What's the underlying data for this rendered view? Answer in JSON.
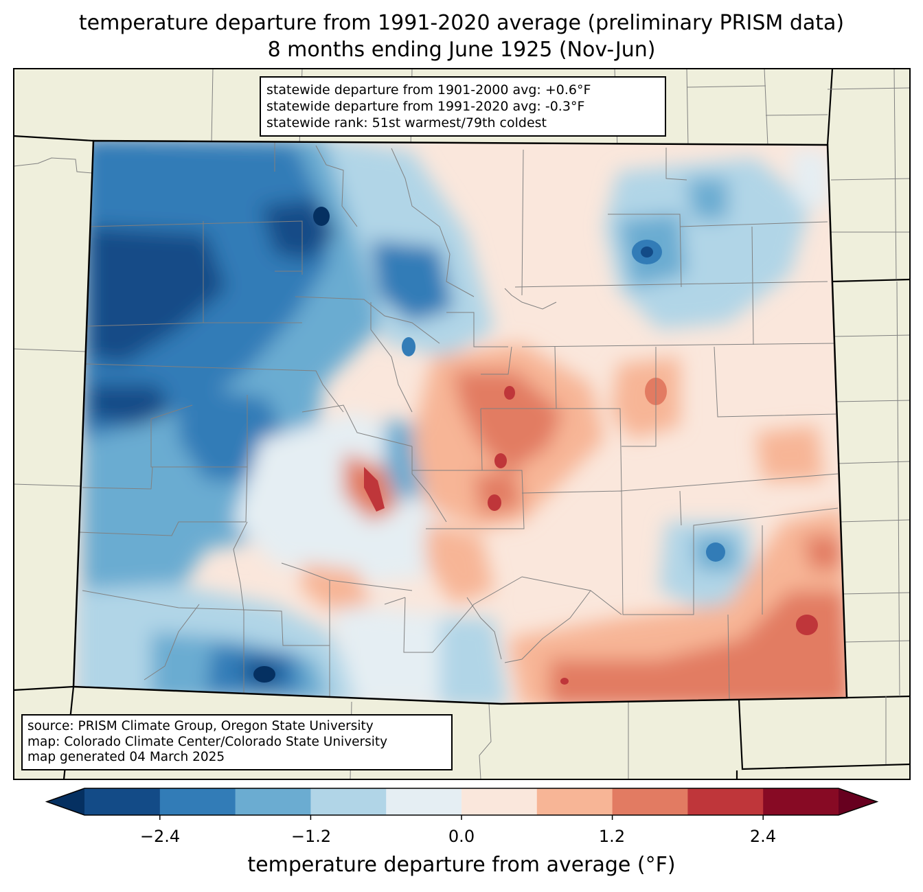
{
  "title": {
    "line1": "temperature departure from 1991-2020 average (preliminary PRISM data)",
    "line2": "8 months ending June 1925 (Nov-Jun)"
  },
  "stats": {
    "line1": "statewide departure from 1901-2000 avg: +0.6°F",
    "line2": "statewide departure from 1991-2020 avg: -0.3°F",
    "line3": "statewide rank: 51st warmest/79th coldest"
  },
  "source": {
    "line1": "source: PRISM Climate Group, Oregon State University",
    "line2": "map: Colorado Climate Center/Colorado State University",
    "line3": "map generated 04 March 2025"
  },
  "colorbar": {
    "label": "temperature departure from average (°F)",
    "ticks": [
      "−2.4",
      "−1.2",
      "0.0",
      "1.2",
      "2.4"
    ],
    "bins": [
      -3.0,
      -2.4,
      -1.8,
      -1.2,
      -0.6,
      0.0,
      0.6,
      1.2,
      1.8,
      2.4,
      3.0
    ],
    "colors": [
      "#053061",
      "#134b87",
      "#327cb7",
      "#6bacd1",
      "#b1d5e7",
      "#e5eef3",
      "#fae7dc",
      "#f7b596",
      "#e27b62",
      "#bf363a",
      "#870a24",
      "#67001f"
    ]
  },
  "map_colors": {
    "land": "#efefdc",
    "state_border": "#000000",
    "county_border": "#808080"
  }
}
